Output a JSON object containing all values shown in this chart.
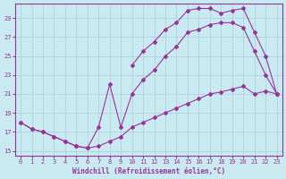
{
  "xlabel": "Windchill (Refroidissement éolien,°C)",
  "background_color": "#c8eaf0",
  "grid_color": "#aaccdd",
  "line_color": "#993399",
  "xlim": [
    -0.5,
    23.5
  ],
  "ylim": [
    14.5,
    30.5
  ],
  "yticks": [
    15,
    17,
    19,
    21,
    23,
    25,
    27,
    29
  ],
  "xticks": [
    0,
    1,
    2,
    3,
    4,
    5,
    6,
    7,
    8,
    9,
    10,
    11,
    12,
    13,
    14,
    15,
    16,
    17,
    18,
    19,
    20,
    21,
    22,
    23
  ],
  "series": [
    {
      "x": [
        0,
        1,
        2,
        3,
        4,
        5,
        6,
        7,
        8,
        9,
        10,
        11,
        12,
        13,
        14,
        15,
        16,
        17,
        18,
        19,
        20,
        21,
        22,
        23
      ],
      "y": [
        18.0,
        17.3,
        17.0,
        16.5,
        16.0,
        15.5,
        15.3,
        15.5,
        16.0,
        16.5,
        17.5,
        18.0,
        18.5,
        19.0,
        19.5,
        20.0,
        20.5,
        21.0,
        21.2,
        21.5,
        21.8,
        21.0,
        21.3,
        21.0
      ]
    },
    {
      "x": [
        0,
        1,
        2,
        3,
        4,
        5,
        6,
        7,
        8,
        9,
        10,
        11,
        12,
        13,
        14,
        15,
        16,
        17,
        18,
        19,
        20,
        21,
        22,
        23
      ],
      "y": [
        18.0,
        17.3,
        17.0,
        16.5,
        16.0,
        15.5,
        15.3,
        17.5,
        22.0,
        17.5,
        21.0,
        22.5,
        23.5,
        25.0,
        26.0,
        27.5,
        27.8,
        28.3,
        28.5,
        28.5,
        28.0,
        25.5,
        23.0,
        21.0
      ]
    },
    {
      "x": [
        10,
        11,
        12,
        13,
        14,
        15,
        16,
        17,
        18,
        19,
        20,
        21,
        22,
        23
      ],
      "y": [
        24.0,
        25.5,
        26.5,
        27.8,
        28.5,
        29.8,
        30.0,
        30.0,
        29.5,
        29.8,
        30.0,
        27.5,
        25.0,
        21.0
      ]
    }
  ]
}
